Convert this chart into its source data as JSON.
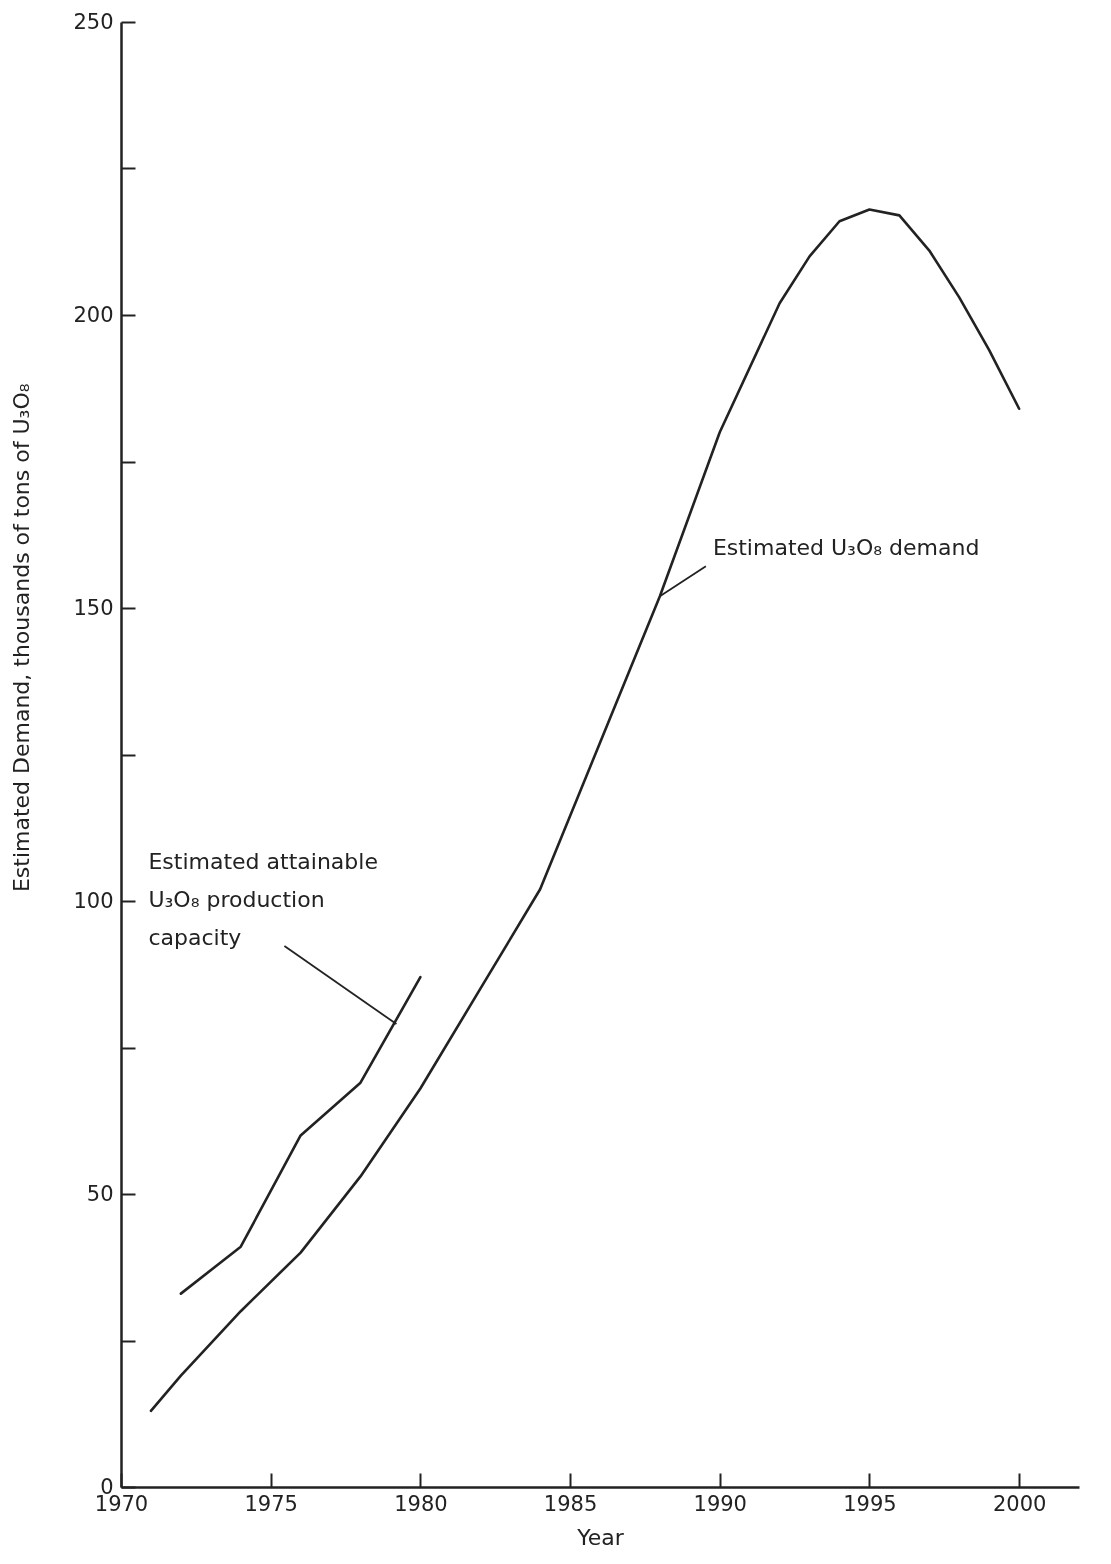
{
  "chart_data": {
    "type": "line",
    "xlabel": "Year",
    "ylabel": "Estimated Demand, thousands of tons of U₃O₈",
    "xlim": [
      1970,
      2002
    ],
    "xticks": [
      1970,
      1975,
      1980,
      1985,
      1990,
      1995,
      2000
    ],
    "ylim": [
      0,
      250
    ],
    "yticks": [
      0,
      {
        "value": 25,
        "label": null
      },
      50,
      {
        "value": 75,
        "label": null
      },
      100,
      {
        "value": 125,
        "label": null
      },
      150,
      {
        "value": 175,
        "label": null
      },
      200,
      {
        "value": 225,
        "label": null
      },
      250
    ],
    "grid": false,
    "marker": "none",
    "line_style": "solid",
    "series": [
      {
        "color": "#222222",
        "x": [
          1971,
          1972,
          1974,
          1976,
          1978,
          1980,
          1982,
          1984,
          1986,
          1988,
          1990,
          1992,
          1993,
          1994,
          1995,
          1996,
          1997,
          1998,
          1999,
          2000
        ],
        "values": [
          13,
          19,
          30,
          40,
          53,
          68,
          85,
          102,
          127,
          152,
          180,
          202,
          210,
          216,
          218,
          217,
          211,
          203,
          194,
          184
        ]
      },
      {
        "color": "#222222",
        "x": [
          1972,
          1974,
          1976,
          1978,
          1980
        ],
        "values": [
          33,
          41,
          60,
          69,
          87
        ]
      }
    ],
    "annotations": [
      {
        "text": "Estimated U₃O₈  demand",
        "x": 1988,
        "y": 152
      },
      {
        "text": "Estimated attainable\nU₃O₈ production\ncapacity",
        "x": 1979.2,
        "y": 79
      }
    ]
  }
}
